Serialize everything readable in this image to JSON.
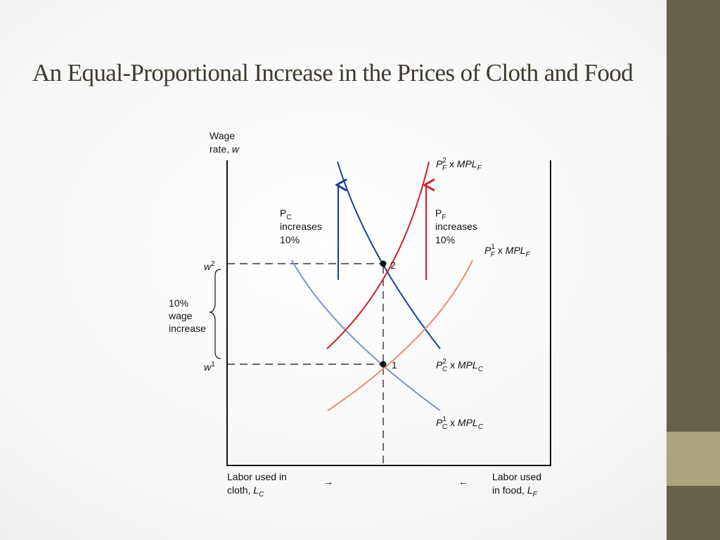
{
  "slide": {
    "title": "An Equal-Proportional Increase in the Prices of Cloth and Food",
    "colors": {
      "sidebar": "#67604a",
      "sidebar_accent": "#a9a47c",
      "title": "#3f3a2e"
    }
  },
  "diagram": {
    "y_axis_label_line1": "Wage",
    "y_axis_label_line2": "rate, ",
    "y_axis_label_var": "w",
    "wage_high": {
      "letter": "w",
      "sup": "2"
    },
    "wage_low": {
      "letter": "w",
      "sup": "1"
    },
    "point_2_label": "2",
    "point_1_label": "1",
    "wage_increase_note": [
      "10%",
      "wage",
      "increase"
    ],
    "pc_note": {
      "letter": "P",
      "sub": "C",
      "line2": "increases",
      "line3": "10%"
    },
    "pf_note": {
      "letter": "P",
      "sub": "F",
      "line2": "increases",
      "line3": "10%"
    },
    "curves": {
      "pf2": {
        "P": "P",
        "sup": "2",
        "sub": "F",
        "x": " x ",
        "MPL": "MPL",
        "sub2": "F",
        "color": "#d0202c"
      },
      "pf1": {
        "P": "P",
        "sup": "1",
        "sub": "F",
        "x": " x ",
        "MPL": "MPL",
        "sub2": "F",
        "color": "#ee8b70"
      },
      "pc2": {
        "P": "P",
        "sup": "2",
        "sub": "C",
        "x": " x ",
        "MPL": "MPL",
        "sub2": "C",
        "color": "#1a3e96"
      },
      "pc1": {
        "P": "P",
        "sup": "1",
        "sub": "C",
        "x": " x ",
        "MPL": "MPL",
        "sub2": "C",
        "color": "#7b94cc"
      }
    },
    "x_axis_left": {
      "line1": "Labor used in",
      "line2": "cloth, ",
      "var": "L",
      "sub": "C",
      "arrow": "→"
    },
    "x_axis_right": {
      "line1": "Labor used",
      "line2": "in food, ",
      "var": "L",
      "sub": "F",
      "arrow": "←"
    },
    "arrow_colors": {
      "pc": "#1a3e96",
      "pf": "#d0202c"
    }
  }
}
